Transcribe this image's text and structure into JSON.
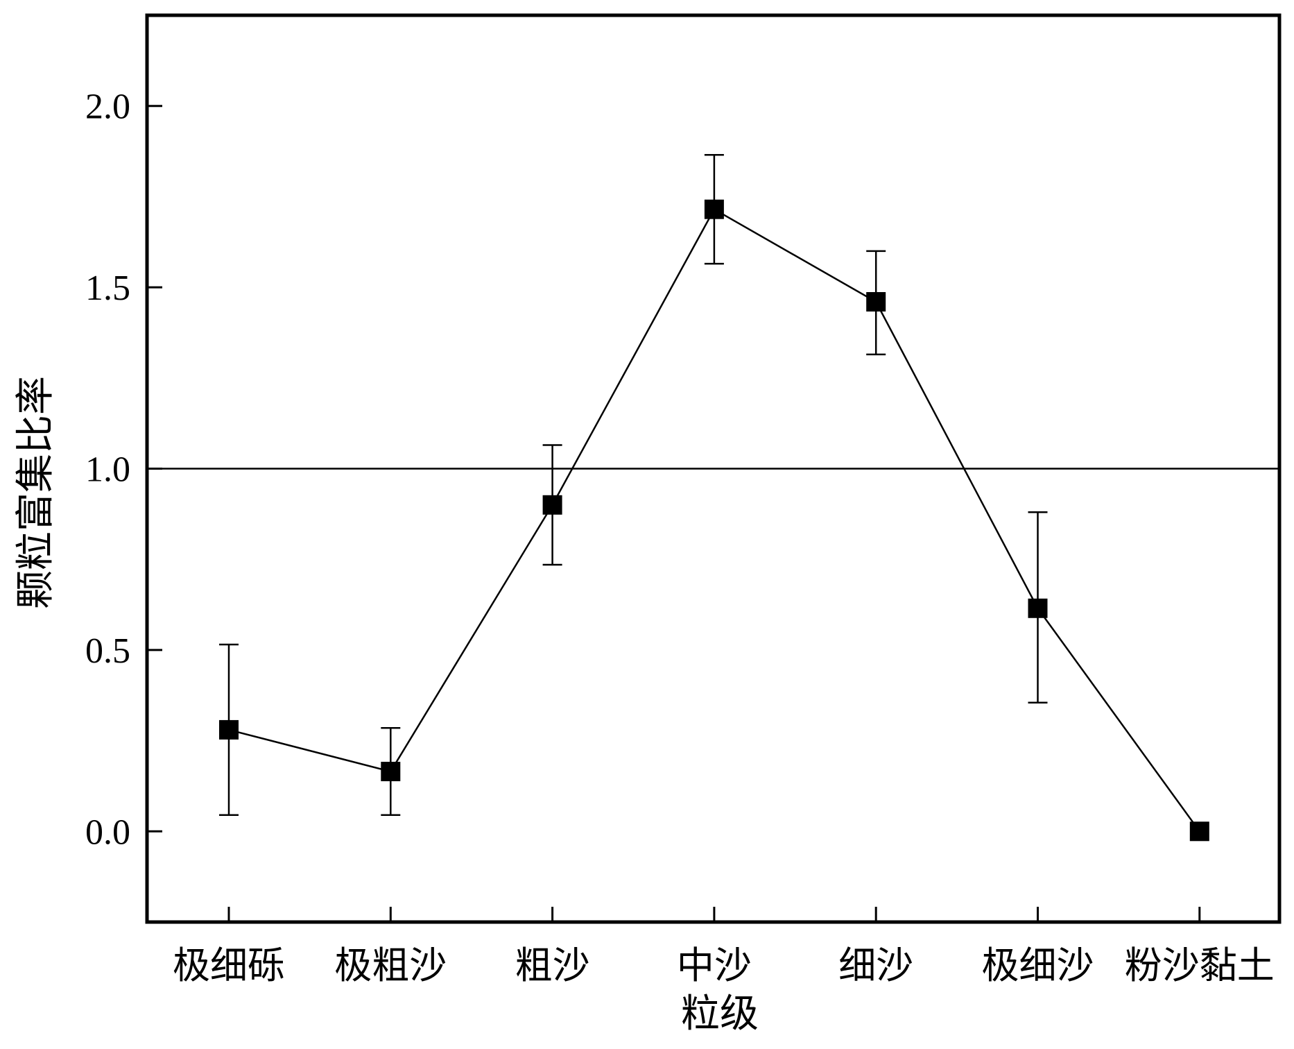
{
  "chart_data": {
    "type": "line",
    "xlabel": "粒级",
    "ylabel": "颗粒富集比率",
    "categories": [
      "极细砾",
      "极粗沙",
      "粗沙",
      "中沙",
      "细沙",
      "极细沙",
      "粉沙黏土"
    ],
    "values": [
      0.28,
      0.165,
      0.9,
      1.715,
      1.46,
      0.615,
      0.0
    ],
    "error_upper": [
      0.515,
      0.285,
      1.065,
      1.865,
      1.6,
      0.88,
      0.0
    ],
    "error_lower": [
      0.045,
      0.045,
      0.735,
      1.565,
      1.315,
      0.355,
      0.0
    ],
    "ylim": [
      -0.25,
      2.25
    ],
    "yticks": [
      0.0,
      0.5,
      1.0,
      1.5,
      2.0
    ],
    "ytick_labels": [
      "0.0",
      "0.5",
      "1.0",
      "1.5",
      "2.0"
    ],
    "reference_line": 1.0,
    "marker": "square",
    "color": "#000000",
    "grid": false
  }
}
